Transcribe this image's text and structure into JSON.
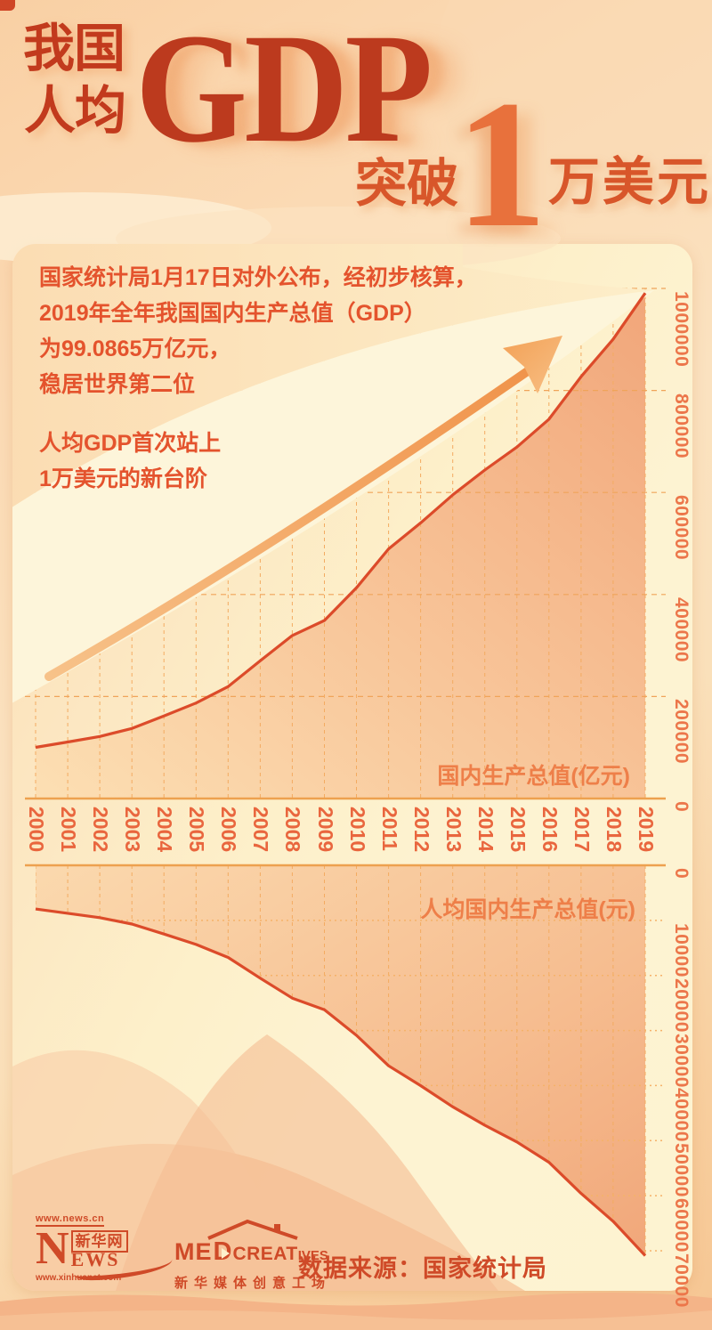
{
  "title": {
    "left_top": "我国",
    "left_bottom": "人均",
    "gdp": "GDP",
    "breakthrough": "突破",
    "one": "1",
    "unit": "万美元"
  },
  "intro": {
    "para1": [
      "国家统计局1月17日对外公布，经初步核算，",
      "2019年全年我国国内生产总值（GDP）",
      "为99.0865万亿元，",
      "稳居世界第二位"
    ],
    "para2": [
      "人均GDP首次站上",
      "1万美元的新台阶"
    ]
  },
  "chart_data": [
    {
      "type": "area",
      "title": "国内生产总值(亿元)",
      "x": [
        2000,
        2001,
        2002,
        2003,
        2004,
        2005,
        2006,
        2007,
        2008,
        2009,
        2010,
        2011,
        2012,
        2013,
        2014,
        2015,
        2016,
        2017,
        2018,
        2019
      ],
      "values": [
        100280,
        110863,
        121717,
        137422,
        161840,
        187319,
        219439,
        270232,
        319516,
        349081,
        413030,
        489301,
        540367,
        595244,
        643974,
        689052,
        743586,
        827122,
        900309,
        990865
      ],
      "ylim": [
        0,
        1000000
      ],
      "yticks": [
        0,
        200000,
        400000,
        600000,
        800000,
        1000000
      ],
      "axis_side": "right",
      "grid": true,
      "orientation": "up"
    },
    {
      "type": "area",
      "title": "人均国内生产总值(元)",
      "x": [
        2000,
        2001,
        2002,
        2003,
        2004,
        2005,
        2006,
        2007,
        2008,
        2009,
        2010,
        2011,
        2012,
        2013,
        2014,
        2015,
        2016,
        2017,
        2018,
        2019
      ],
      "values": [
        7942,
        8717,
        9506,
        10666,
        12487,
        14368,
        16738,
        20505,
        24121,
        26222,
        30876,
        36403,
        40007,
        43852,
        47203,
        50251,
        53935,
        59592,
        64644,
        70892
      ],
      "ylim": [
        0,
        70000
      ],
      "yticks": [
        0,
        10000,
        20000,
        30000,
        40000,
        50000,
        60000,
        70000
      ],
      "axis_side": "right",
      "grid": true,
      "orientation": "down"
    }
  ],
  "colors": {
    "title_red": "#bc3a1e",
    "accent_orange": "#e8713c",
    "intro_red": "#e4532d",
    "curve_red": "#dc4b2a",
    "grid_orange": "#f0a45a",
    "axis_label_orange": "#ec764a",
    "year_label_orange": "#e9663e",
    "footer_red": "#cf4a28",
    "card_cream": "#fdf3d1",
    "band_cream": "#fdf5da"
  },
  "footer": {
    "news_url_top": "www.news.cn",
    "news_n": "N",
    "news_xinhua": "新华网",
    "news_ews": "EWS",
    "news_url_bottom": "www.xinhuanet.com",
    "med_me": "ME",
    "med_d": "D",
    "med_creat": "CREAT",
    "med_ives": "IVES",
    "med_cn": "新华媒体创意工场",
    "source": "数据来源：国家统计局"
  }
}
